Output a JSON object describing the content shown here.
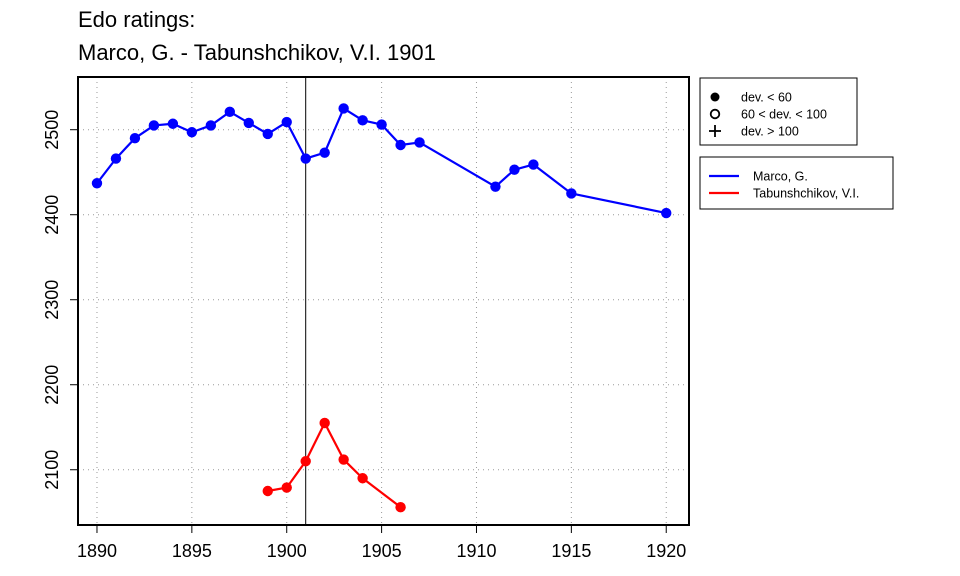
{
  "chart_data": {
    "type": "line",
    "title": "Edo ratings:",
    "subtitle": "Marco, G. - Tabunshchikov, V.I. 1901",
    "xlabel": "",
    "ylabel": "",
    "xlim": [
      1889,
      1921.2
    ],
    "ylim": [
      2035,
      2562
    ],
    "x_ticks": [
      "1890",
      "1895",
      "1900",
      "1905",
      "1910",
      "1915",
      "1920"
    ],
    "y_ticks": [
      "2100",
      "2200",
      "2300",
      "2400",
      "2500"
    ],
    "x_tick_values": [
      1890,
      1895,
      1900,
      1905,
      1910,
      1915,
      1920
    ],
    "y_tick_values": [
      2100,
      2200,
      2300,
      2400,
      2500
    ],
    "grid": true,
    "marker_year": 1901,
    "legend_placement": "right",
    "deviation_legend": [
      {
        "symbol": "filled-circle",
        "label": "dev. < 60"
      },
      {
        "symbol": "open-circle",
        "label": "60 < dev. < 100"
      },
      {
        "symbol": "plus",
        "label": "dev. > 100"
      }
    ],
    "series": [
      {
        "name": "Marco, G.",
        "color": "#0000ff",
        "points": [
          {
            "x": 1890,
            "y": 2437
          },
          {
            "x": 1891,
            "y": 2466
          },
          {
            "x": 1892,
            "y": 2490
          },
          {
            "x": 1893,
            "y": 2505
          },
          {
            "x": 1894,
            "y": 2507
          },
          {
            "x": 1895,
            "y": 2497
          },
          {
            "x": 1896,
            "y": 2505
          },
          {
            "x": 1897,
            "y": 2521
          },
          {
            "x": 1898,
            "y": 2508
          },
          {
            "x": 1899,
            "y": 2495
          },
          {
            "x": 1900,
            "y": 2509
          },
          {
            "x": 1901,
            "y": 2466
          },
          {
            "x": 1902,
            "y": 2473
          },
          {
            "x": 1903,
            "y": 2525
          },
          {
            "x": 1904,
            "y": 2511
          },
          {
            "x": 1905,
            "y": 2506
          },
          {
            "x": 1906,
            "y": 2482
          },
          {
            "x": 1907,
            "y": 2485
          },
          {
            "x": 1911,
            "y": 2433
          },
          {
            "x": 1912,
            "y": 2453
          },
          {
            "x": 1913,
            "y": 2459
          },
          {
            "x": 1915,
            "y": 2425
          },
          {
            "x": 1920,
            "y": 2402
          }
        ]
      },
      {
        "name": "Tabunshchikov, V.I.",
        "color": "#ff0000",
        "points": [
          {
            "x": 1899,
            "y": 2075
          },
          {
            "x": 1900,
            "y": 2079
          },
          {
            "x": 1901,
            "y": 2110
          },
          {
            "x": 1902,
            "y": 2155
          },
          {
            "x": 1903,
            "y": 2112
          },
          {
            "x": 1904,
            "y": 2090
          },
          {
            "x": 1906,
            "y": 2056
          }
        ]
      }
    ]
  }
}
